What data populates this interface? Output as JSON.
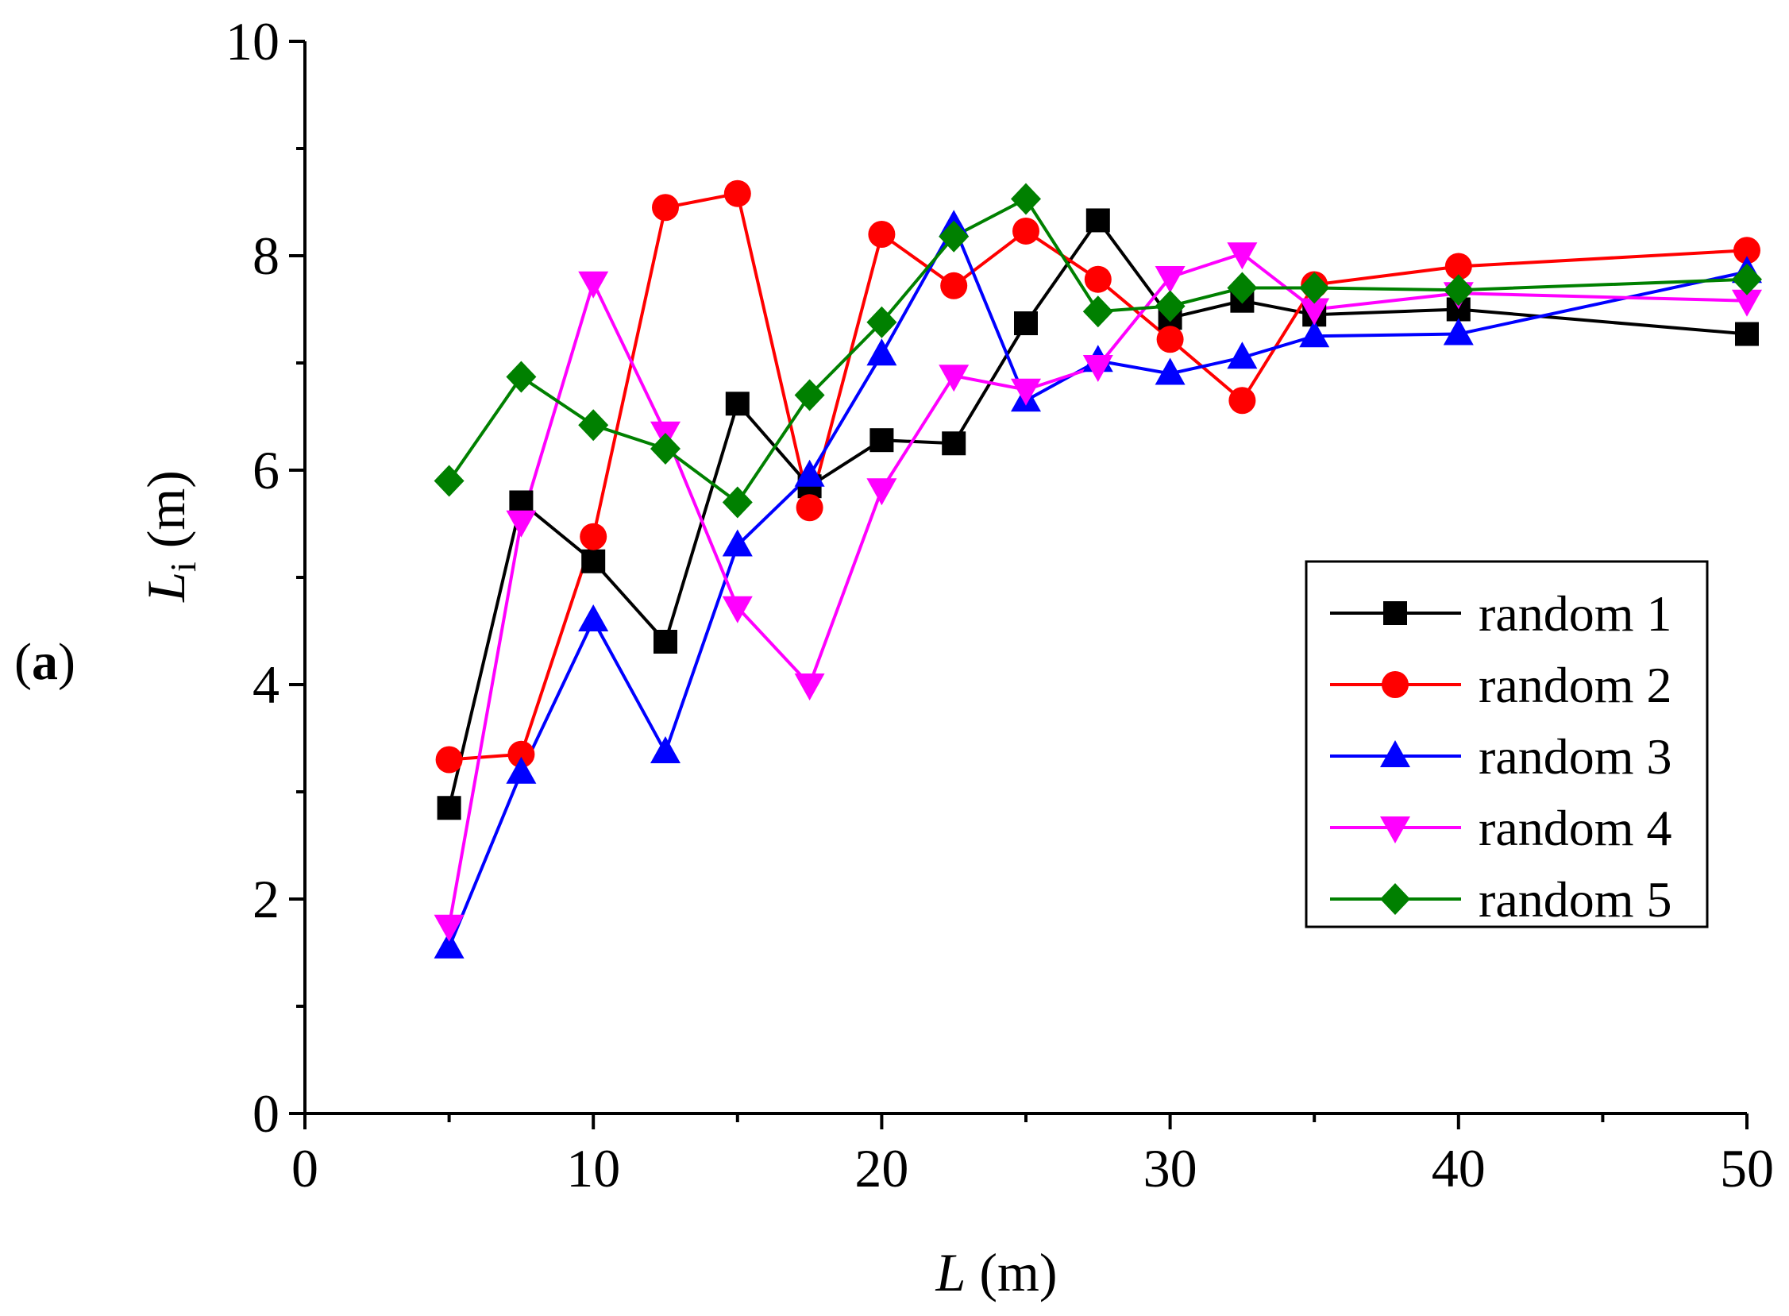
{
  "panel_label": {
    "open": "(",
    "letter": "a",
    "close": ")"
  },
  "chart_data": {
    "type": "line",
    "title": "",
    "xlabel": {
      "var": "L",
      "unit": " (m)"
    },
    "ylabel": {
      "var": "L",
      "sub": "i",
      "unit": " (m)"
    },
    "xlim": [
      0,
      50
    ],
    "ylim": [
      0,
      10
    ],
    "x_ticks": [
      0,
      10,
      20,
      30,
      40,
      50
    ],
    "x_minor_ticks": [
      5,
      15,
      25,
      35,
      45
    ],
    "y_ticks": [
      0,
      2,
      4,
      6,
      8,
      10
    ],
    "y_minor_ticks": [
      1,
      3,
      5,
      7,
      9
    ],
    "grid": false,
    "legend_position": "right",
    "x": [
      5,
      7.5,
      10,
      12.5,
      15,
      17.5,
      20,
      22.5,
      25,
      27.5,
      30,
      32.5,
      35,
      40,
      50
    ],
    "series": [
      {
        "name": "random 1",
        "color": "#000000",
        "marker": "square",
        "values": [
          2.85,
          5.7,
          5.15,
          4.4,
          6.62,
          5.85,
          6.28,
          6.25,
          7.37,
          8.33,
          7.42,
          7.58,
          7.45,
          7.5,
          7.27
        ]
      },
      {
        "name": "random 2",
        "color": "#ff0000",
        "marker": "circle",
        "values": [
          3.3,
          3.35,
          5.38,
          8.45,
          8.58,
          5.65,
          8.2,
          7.72,
          8.23,
          7.78,
          7.22,
          6.65,
          7.73,
          7.9,
          8.05
        ]
      },
      {
        "name": "random 3",
        "color": "#0000ff",
        "marker": "triangle-up",
        "values": [
          1.55,
          3.18,
          4.6,
          3.37,
          5.3,
          5.95,
          7.08,
          8.28,
          6.65,
          7.02,
          6.9,
          7.05,
          7.25,
          7.27,
          7.85
        ]
      },
      {
        "name": "random 4",
        "color": "#ff00ff",
        "marker": "triangle-down",
        "values": [
          1.75,
          5.52,
          7.75,
          6.35,
          4.72,
          4.0,
          5.82,
          6.88,
          6.75,
          6.97,
          7.8,
          8.02,
          7.5,
          7.65,
          7.58
        ]
      },
      {
        "name": "random 5",
        "color": "#008000",
        "marker": "diamond",
        "values": [
          5.9,
          6.87,
          6.42,
          6.2,
          5.7,
          6.7,
          7.38,
          8.18,
          8.53,
          7.48,
          7.53,
          7.7,
          7.7,
          7.68,
          7.78
        ]
      }
    ]
  }
}
